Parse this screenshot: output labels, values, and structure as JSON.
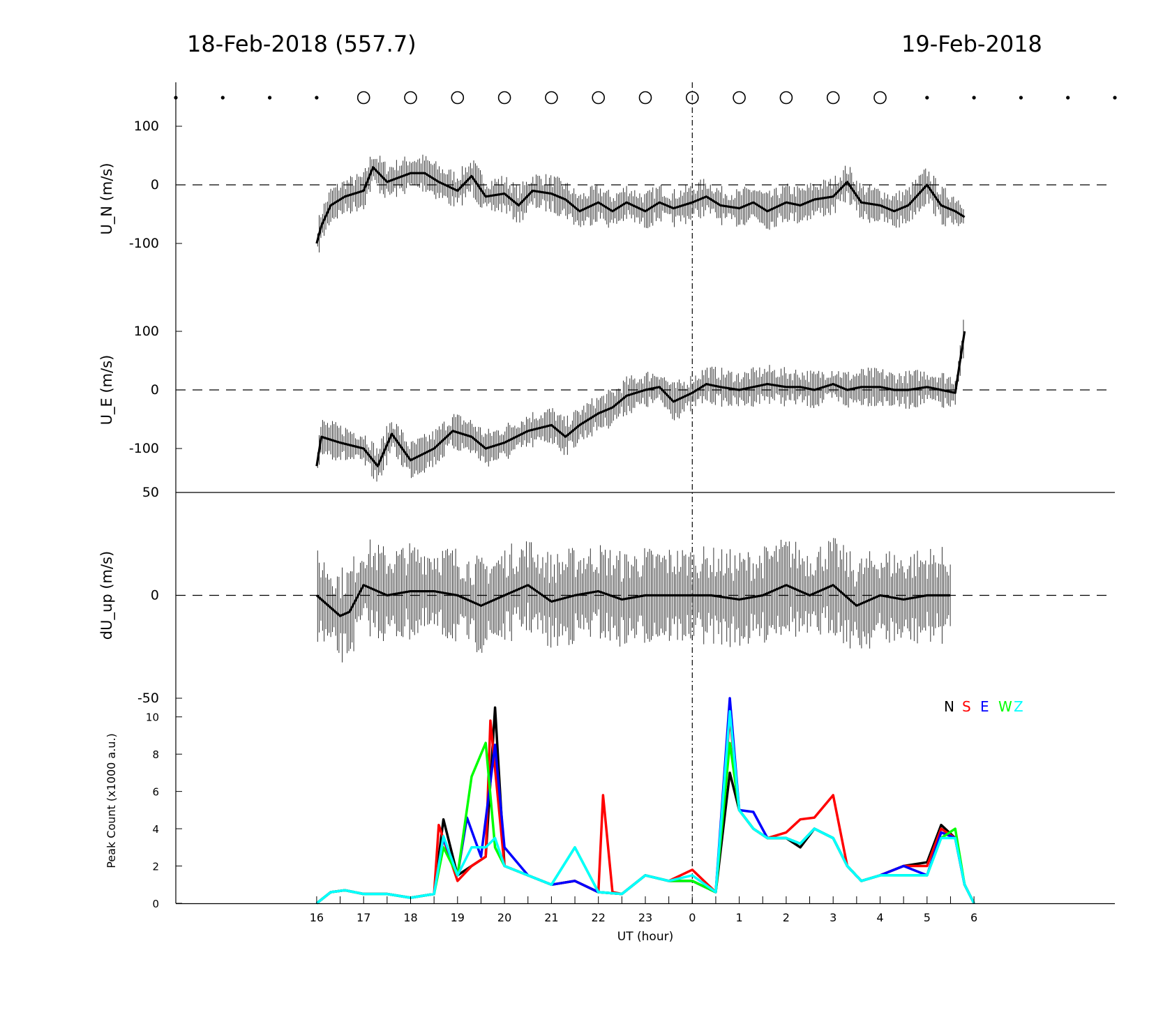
{
  "header": {
    "left_date": "18-Feb-2018 (557.7)",
    "right_date": "19-Feb-2018"
  },
  "chart_data": [
    {
      "type": "line",
      "panel": "U_N",
      "ylabel": "U_N (m/s)",
      "ylim": [
        -175,
        175
      ],
      "yticks": [
        "100",
        "0",
        "-100"
      ],
      "ytick_values": [
        100,
        0,
        -100
      ],
      "x_unit": "hours since 16 UT",
      "xlim": [
        -3,
        17
      ],
      "reference_line": 0,
      "vertical_marker": 8,
      "markers": {
        "dot_hours": [
          -3,
          -2,
          -1,
          0,
          13,
          14,
          15,
          16,
          17
        ],
        "circle_hours": [
          1,
          2,
          3,
          4,
          5,
          6,
          7,
          8,
          9,
          10,
          11,
          12
        ]
      },
      "series": [
        {
          "x": [
            0,
            0.1,
            0.3,
            0.6,
            1,
            1.2,
            1.5,
            2,
            2.3,
            2.6,
            3,
            3.3,
            3.6,
            4,
            4.3,
            4.6,
            5,
            5.3,
            5.6,
            6,
            6.3,
            6.6,
            7,
            7.3,
            7.6,
            8,
            8.3,
            8.6,
            9,
            9.3,
            9.6,
            10,
            10.3,
            10.6,
            11,
            11.3,
            11.6,
            12,
            12.3,
            12.6,
            13,
            13.3,
            13.6,
            13.8
          ],
          "values": [
            -100,
            -70,
            -35,
            -20,
            -10,
            30,
            5,
            20,
            20,
            5,
            -10,
            15,
            -20,
            -15,
            -35,
            -10,
            -15,
            -25,
            -45,
            -30,
            -45,
            -30,
            -45,
            -30,
            -40,
            -30,
            -20,
            -35,
            -40,
            -30,
            -45,
            -30,
            -35,
            -25,
            -20,
            5,
            -30,
            -35,
            -45,
            -35,
            0,
            -35,
            -45,
            -55
          ]
        }
      ]
    },
    {
      "type": "line",
      "panel": "U_E",
      "ylabel": "U_E (m/s)",
      "ylim": [
        -175,
        175
      ],
      "yticks": [
        "100",
        "0",
        "-100"
      ],
      "ytick_values": [
        100,
        0,
        -100
      ],
      "x_unit": "hours since 16 UT",
      "xlim": [
        -3,
        17
      ],
      "reference_line": 0,
      "series": [
        {
          "x": [
            0,
            0.1,
            0.5,
            1,
            1.3,
            1.6,
            2,
            2.5,
            2.9,
            3.3,
            3.6,
            4,
            4.5,
            5,
            5.3,
            5.6,
            6,
            6.3,
            6.6,
            7,
            7.3,
            7.6,
            8,
            8.3,
            8.6,
            9,
            9.3,
            9.6,
            10,
            10.3,
            10.6,
            11,
            11.3,
            11.6,
            12,
            12.3,
            12.6,
            13,
            13.3,
            13.6,
            13.8
          ],
          "values": [
            -130,
            -80,
            -90,
            -100,
            -130,
            -75,
            -120,
            -100,
            -70,
            -80,
            -100,
            -90,
            -70,
            -60,
            -80,
            -60,
            -40,
            -30,
            -10,
            0,
            5,
            -20,
            -5,
            10,
            5,
            0,
            5,
            10,
            5,
            5,
            0,
            10,
            0,
            5,
            5,
            0,
            0,
            5,
            0,
            -5,
            100
          ]
        }
      ]
    },
    {
      "type": "line",
      "panel": "dU_up",
      "ylabel": "dU_up (m/s)",
      "ylim": [
        -50,
        50
      ],
      "yticks": [
        "50",
        "0",
        "-50"
      ],
      "ytick_values": [
        50,
        0,
        -50
      ],
      "x_unit": "hours since 16 UT",
      "xlim": [
        -3,
        17
      ],
      "reference_line": 0,
      "series": [
        {
          "x": [
            0,
            0.5,
            0.7,
            1,
            1.5,
            2,
            2.5,
            3,
            3.5,
            4,
            4.5,
            5,
            5.5,
            6,
            6.5,
            7,
            7.5,
            8,
            8.4,
            9,
            9.5,
            10,
            10.5,
            11,
            11.5,
            12,
            12.5,
            13,
            13.5
          ],
          "values": [
            0,
            -10,
            -8,
            5,
            0,
            2,
            2,
            0,
            -5,
            0,
            5,
            -3,
            0,
            2,
            -2,
            0,
            0,
            0,
            0,
            -2,
            0,
            5,
            0,
            5,
            -5,
            0,
            -2,
            0,
            0
          ]
        }
      ]
    },
    {
      "type": "line",
      "panel": "Peak Count",
      "ylabel": "Peak Count (x1000 a.u.)",
      "ylim": [
        0,
        11
      ],
      "yticks": [
        "0",
        "2",
        "4",
        "6",
        "8",
        "10"
      ],
      "ytick_values": [
        0,
        2,
        4,
        6,
        8,
        10
      ],
      "xlabel": "UT (hour)",
      "x_unit": "hours since 16 UT",
      "xlim": [
        -3,
        17
      ],
      "xtick_values": [
        0,
        1,
        2,
        3,
        4,
        5,
        6,
        7,
        8,
        9,
        10,
        11,
        12,
        13,
        14
      ],
      "xticks": [
        "16",
        "17",
        "18",
        "19",
        "20",
        "21",
        "22",
        "23",
        "0",
        "1",
        "2",
        "3",
        "4",
        "5",
        "6"
      ],
      "legend": "top-right",
      "series": [
        {
          "name": "N",
          "color": "#000000",
          "x": [
            0,
            0.3,
            0.6,
            1,
            1.5,
            2,
            2.5,
            2.7,
            3,
            3.3,
            3.6,
            3.8,
            4,
            4.5,
            5,
            5.5,
            6,
            6.5,
            7,
            7.5,
            8,
            8.5,
            8.8,
            9,
            9.3,
            9.6,
            10,
            10.3,
            10.6,
            11,
            11.3,
            11.6,
            12,
            12.5,
            13,
            13.3,
            13.6,
            13.8,
            14
          ],
          "values": [
            0,
            0.6,
            0.7,
            0.5,
            0.5,
            0.3,
            0.5,
            4.5,
            1.5,
            2,
            2.5,
            10.5,
            2,
            1.5,
            1,
            1.2,
            0.6,
            0.5,
            1.5,
            1.2,
            1.2,
            0.6,
            7,
            5,
            4,
            3.5,
            3.5,
            3,
            4,
            3.5,
            2,
            1.2,
            1.5,
            2,
            2.2,
            4.2,
            3.5,
            1,
            0
          ]
        },
        {
          "name": "S",
          "color": "#ff0000",
          "x": [
            0,
            0.3,
            0.6,
            1,
            1.5,
            2,
            2.5,
            2.6,
            3,
            3.3,
            3.6,
            3.7,
            4,
            4.5,
            5,
            5.5,
            6,
            6.1,
            6.3,
            6.5,
            7,
            7.5,
            8,
            8.5,
            8.8,
            9,
            9.3,
            9.6,
            10,
            10.3,
            10.6,
            11,
            11.3,
            11.6,
            12,
            12.5,
            13,
            13.3,
            13.6,
            13.8,
            14
          ],
          "values": [
            0,
            0.6,
            0.7,
            0.5,
            0.5,
            0.3,
            0.5,
            4.2,
            1.2,
            2,
            2.5,
            9.8,
            2,
            1.5,
            1,
            1.2,
            0.6,
            5.8,
            0.6,
            0.5,
            1.5,
            1.2,
            1.8,
            0.6,
            10,
            5,
            4,
            3.5,
            3.8,
            4.5,
            4.6,
            5.8,
            2,
            1.2,
            1.5,
            2,
            2,
            4,
            3.5,
            1,
            0
          ]
        },
        {
          "name": "E",
          "color": "#0000ff",
          "x": [
            0,
            0.3,
            0.6,
            1,
            1.5,
            2,
            2.5,
            2.7,
            3,
            3.2,
            3.5,
            3.8,
            4,
            4.5,
            5,
            5.5,
            6,
            6.5,
            7,
            7.5,
            8,
            8.5,
            8.8,
            9,
            9.3,
            9.6,
            10,
            10.3,
            10.6,
            11,
            11.3,
            11.6,
            12,
            12.5,
            13,
            13.3,
            13.6,
            13.8,
            14
          ],
          "values": [
            0,
            0.6,
            0.7,
            0.5,
            0.5,
            0.3,
            0.5,
            3.5,
            1.5,
            4.6,
            2.5,
            8.5,
            3,
            1.5,
            1,
            1.2,
            0.6,
            0.5,
            1.5,
            1.2,
            1.2,
            0.6,
            11,
            5,
            4.9,
            3.5,
            3.5,
            3.2,
            4,
            3.5,
            2,
            1.2,
            1.5,
            2,
            1.5,
            3.8,
            3.5,
            1,
            0
          ]
        },
        {
          "name": "W",
          "color": "#00ff00",
          "x": [
            0,
            0.3,
            0.6,
            1,
            1.5,
            2,
            2.5,
            2.7,
            3,
            3.3,
            3.6,
            3.8,
            4,
            4.5,
            5,
            5.5,
            6,
            6.5,
            7,
            7.5,
            8,
            8.5,
            8.8,
            9,
            9.3,
            9.6,
            10,
            10.3,
            10.6,
            11,
            11.3,
            11.6,
            12,
            12.5,
            13,
            13.3,
            13.6,
            13.8,
            14
          ],
          "values": [
            0,
            0.6,
            0.7,
            0.5,
            0.5,
            0.3,
            0.5,
            3,
            1.5,
            6.8,
            8.6,
            3,
            2,
            1.5,
            1,
            3,
            0.6,
            0.5,
            1.5,
            1.2,
            1.2,
            0.6,
            8.6,
            5,
            4,
            3.5,
            3.5,
            3.2,
            4,
            3.5,
            2,
            1.2,
            1.5,
            1.5,
            1.5,
            3.5,
            4,
            1,
            0
          ]
        },
        {
          "name": "Z",
          "color": "#00ffff",
          "x": [
            0,
            0.3,
            0.6,
            1,
            1.5,
            2,
            2.5,
            2.7,
            3,
            3.3,
            3.6,
            3.8,
            4,
            4.5,
            5,
            5.5,
            6,
            6.5,
            7,
            7.5,
            8,
            8.5,
            8.8,
            9,
            9.3,
            9.6,
            10,
            10.3,
            10.6,
            11,
            11.3,
            11.6,
            12,
            12.5,
            13,
            13.3,
            13.6,
            13.8,
            14
          ],
          "values": [
            0,
            0.6,
            0.7,
            0.5,
            0.5,
            0.3,
            0.5,
            3.6,
            1.5,
            3,
            3,
            3.5,
            2,
            1.5,
            1,
            3,
            0.6,
            0.5,
            1.5,
            1.2,
            1.5,
            0.6,
            10.3,
            5,
            4,
            3.5,
            3.5,
            3.2,
            4,
            3.5,
            2,
            1.2,
            1.5,
            1.5,
            1.5,
            3.5,
            3.5,
            1,
            0
          ]
        }
      ]
    }
  ]
}
